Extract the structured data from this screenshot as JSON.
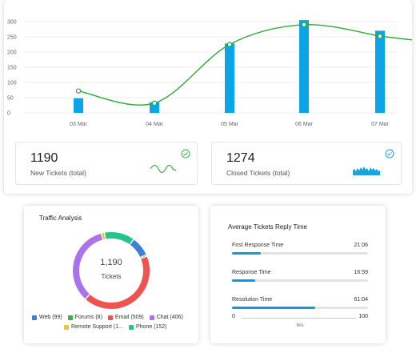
{
  "chart_data": {
    "type": "bar",
    "categories": [
      "03 Mar",
      "04 Mar",
      "05 Mar",
      "06 Mar",
      "07 Mar"
    ],
    "values": [
      48,
      35,
      228,
      305,
      270
    ],
    "line_values": [
      72,
      32,
      225,
      290,
      252
    ],
    "ylim": [
      0,
      300
    ],
    "yticks": [
      0,
      50,
      100,
      150,
      200,
      250,
      300
    ],
    "grid": true,
    "bar_color": "#0aa5e6",
    "line_color": "#2fa83a"
  },
  "kpis": {
    "new": {
      "value": "1190",
      "label": "New Tickets (total)"
    },
    "closed": {
      "value": "1274",
      "label": "Closed  Tickets (total)"
    }
  },
  "colors": {
    "green_check": "#3ab44a",
    "blue_check": "#1aa3e0",
    "accent": "#0a9be3"
  },
  "traffic": {
    "title": "Traffic Analysis",
    "total": "1,190",
    "total_label": "Tickets",
    "segments": [
      {
        "name": "Web",
        "value": 99,
        "color": "#3d7fd9",
        "label": "Web (99)"
      },
      {
        "name": "Forums",
        "value": 8,
        "color": "#3fae45",
        "label": "Forums (8)"
      },
      {
        "name": "Email",
        "value": 509,
        "color": "#ef5350",
        "label": "Email (509)"
      },
      {
        "name": "Chat",
        "value": 406,
        "color": "#a974ea",
        "label": "Chat (406)"
      },
      {
        "name": "Remote Support",
        "value": 16,
        "color": "#f4c430",
        "label": "Remote Support (1..."
      },
      {
        "name": "Phone",
        "value": 152,
        "color": "#25c48a",
        "label": "Phone (152)"
      }
    ]
  },
  "reply": {
    "title": "Average  Tickets  Reply Time",
    "metrics": [
      {
        "label": "First Response Time",
        "value": "21:06",
        "fraction": 0.21
      },
      {
        "label": "Response Time",
        "value": "16:59",
        "fraction": 0.17
      },
      {
        "label": "Resolution Time",
        "value": "61:04",
        "fraction": 0.61
      }
    ],
    "scale_min": "0",
    "scale_max": "100",
    "unit": "hrs"
  }
}
